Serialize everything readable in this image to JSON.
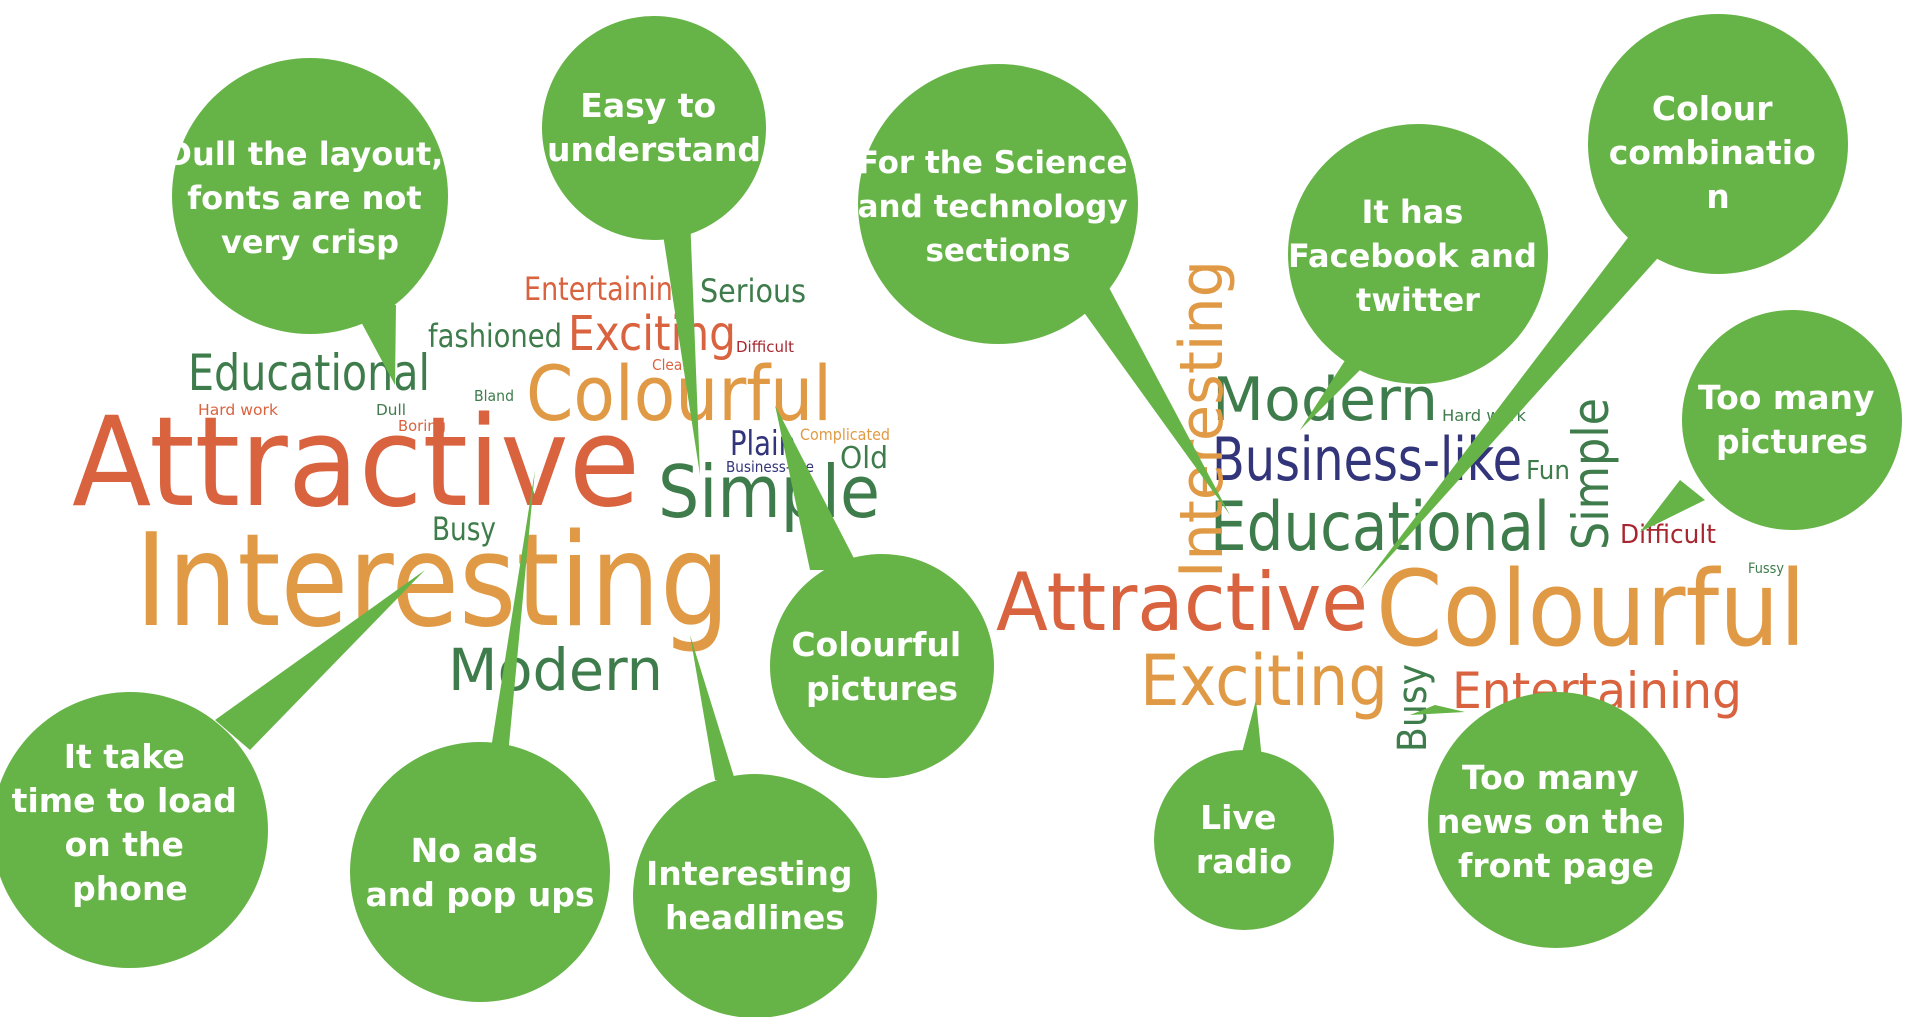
{
  "colors": {
    "bubble": "#66b447",
    "bubble_text": "#ffffff",
    "word_orange": "#e09a45",
    "word_red_orange": "#d9623f",
    "word_green": "#3f7c4c",
    "word_navy": "#33357a",
    "word_dark_red": "#a8262f",
    "background": "#ffffff"
  },
  "left_cloud": {
    "words": [
      {
        "text": "Attractive",
        "color": "word_red_orange"
      },
      {
        "text": "Interesting",
        "color": "word_orange"
      },
      {
        "text": "Simple",
        "color": "word_green"
      },
      {
        "text": "Colourful",
        "color": "word_orange"
      },
      {
        "text": "Modern",
        "color": "word_green"
      },
      {
        "text": "Educational",
        "color": "word_green"
      },
      {
        "text": "Exciting",
        "color": "word_red_orange"
      },
      {
        "text": "Entertaining",
        "color": "word_red_orange"
      },
      {
        "text": "Serious",
        "color": "word_green"
      },
      {
        "text": "fashioned",
        "color": "word_green"
      },
      {
        "text": "Busy",
        "color": "word_green"
      },
      {
        "text": "Plain",
        "color": "word_navy"
      },
      {
        "text": "Old",
        "color": "word_green"
      },
      {
        "text": "Complicated",
        "color": "word_orange"
      },
      {
        "text": "Business-like",
        "color": "word_navy"
      },
      {
        "text": "Difficult",
        "color": "word_dark_red"
      },
      {
        "text": "Clear",
        "color": "word_red_orange"
      },
      {
        "text": "Hard work",
        "color": "word_red_orange"
      },
      {
        "text": "Dull",
        "color": "word_green"
      },
      {
        "text": "Bland",
        "color": "word_green"
      },
      {
        "text": "Boring",
        "color": "word_red_orange"
      }
    ]
  },
  "right_cloud": {
    "words": [
      {
        "text": "Colourful",
        "color": "word_orange"
      },
      {
        "text": "Attractive",
        "color": "word_red_orange"
      },
      {
        "text": "Educational",
        "color": "word_green"
      },
      {
        "text": "Business-like",
        "color": "word_navy"
      },
      {
        "text": "Modern",
        "color": "word_green"
      },
      {
        "text": "Exciting",
        "color": "word_orange"
      },
      {
        "text": "Entertaining",
        "color": "word_red_orange"
      },
      {
        "text": "Interesting",
        "color": "word_orange"
      },
      {
        "text": "Simple",
        "color": "word_green"
      },
      {
        "text": "Busy",
        "color": "word_green"
      },
      {
        "text": "Fun",
        "color": "word_green"
      },
      {
        "text": "Difficult",
        "color": "word_dark_red"
      },
      {
        "text": "Hard work",
        "color": "word_green"
      },
      {
        "text": "Fussy",
        "color": "word_green"
      }
    ]
  },
  "bubbles": [
    {
      "lines": [
        "Dull the layout,",
        "fonts are not",
        "very crisp"
      ]
    },
    {
      "lines": [
        "Easy to",
        "understand"
      ]
    },
    {
      "lines": [
        "For the Science",
        "and technology",
        "sections"
      ]
    },
    {
      "lines": [
        "It has",
        "Facebook and",
        "twitter"
      ]
    },
    {
      "lines": [
        "Colour",
        "combinatio",
        "n"
      ]
    },
    {
      "lines": [
        "Too many",
        "pictures"
      ]
    },
    {
      "lines": [
        "Colourful",
        "pictures"
      ]
    },
    {
      "lines": [
        "It take",
        "time to load",
        "on the",
        "phone"
      ]
    },
    {
      "lines": [
        "No ads",
        "and pop ups"
      ]
    },
    {
      "lines": [
        "Interesting",
        "headlines"
      ]
    },
    {
      "lines": [
        "Live",
        "radio"
      ]
    },
    {
      "lines": [
        "Too many",
        "news on the",
        "front page"
      ]
    }
  ]
}
